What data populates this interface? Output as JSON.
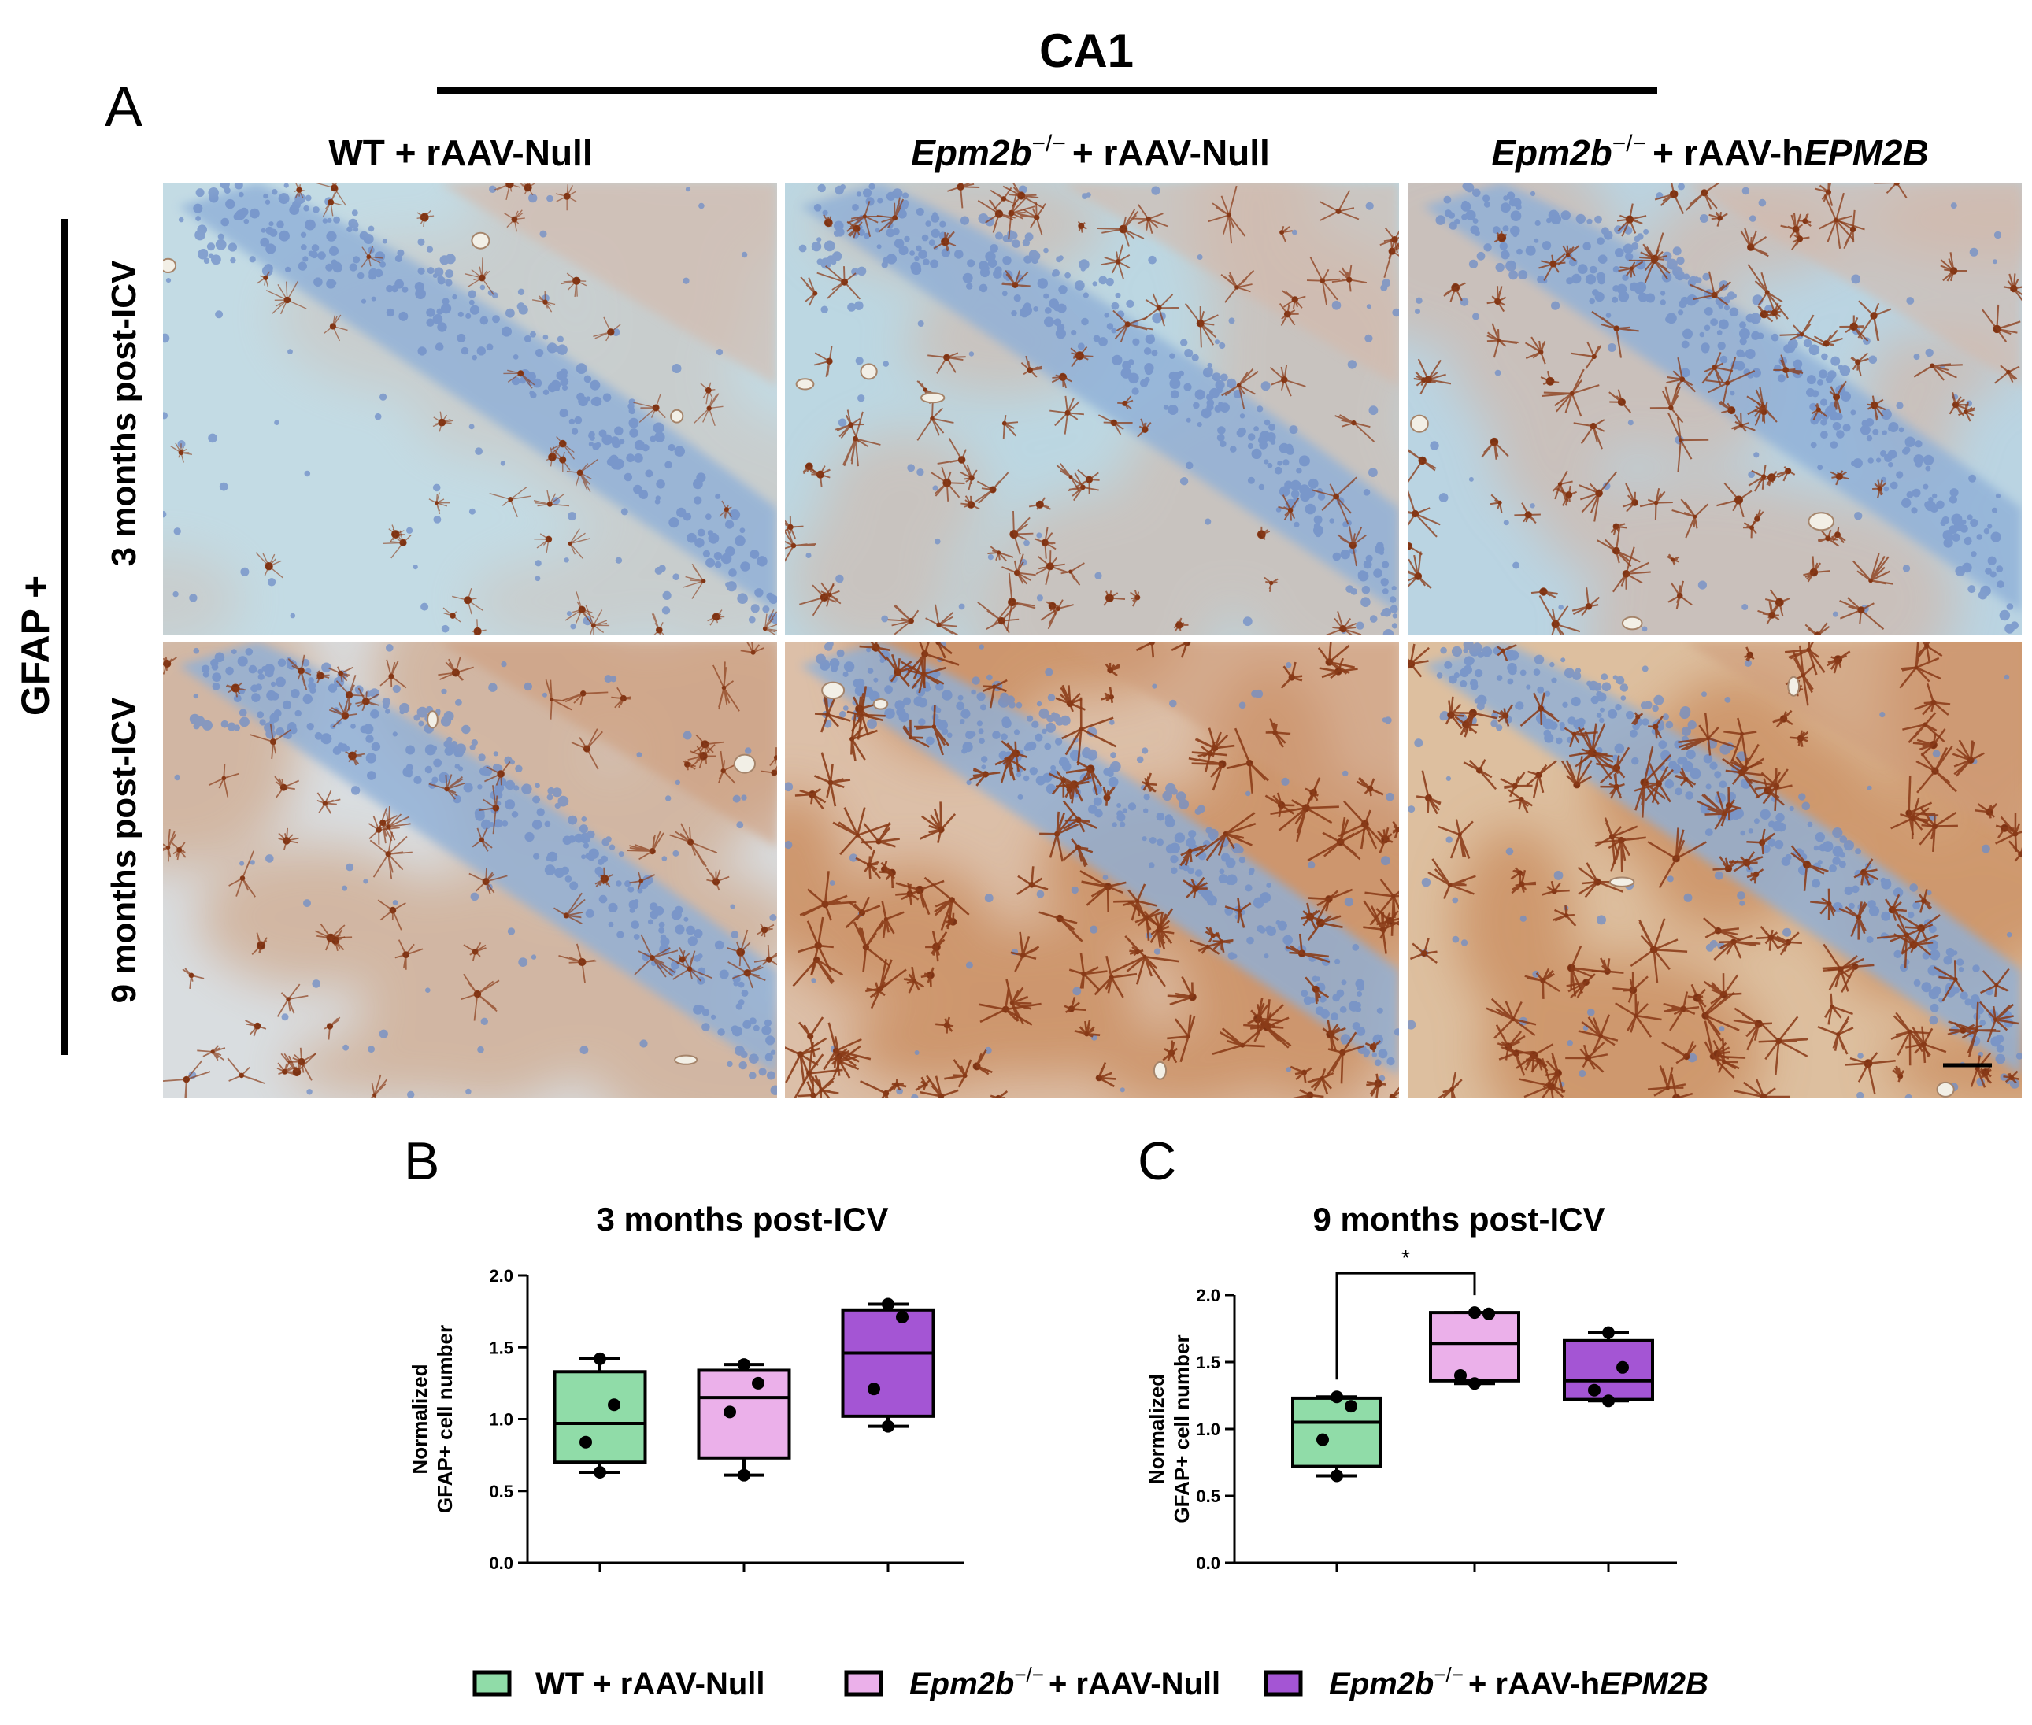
{
  "panel_a": {
    "letter": "A",
    "region": "CA1",
    "row_header": "GFAP +",
    "columns": [
      {
        "part1": "WT + rAAV-Null",
        "sup": "",
        "part2": "",
        "part3": ""
      },
      {
        "part1": "Epm2b",
        "sup": "−/−",
        "part2": "+ rAAV-Null",
        "part3": ""
      },
      {
        "part1": "Epm2b",
        "sup": "−/−",
        "part2": "+ rAAV-h",
        "part3": "EPM2B"
      }
    ],
    "rows": [
      "3 months post-ICV",
      "9 months post-ICV"
    ]
  },
  "colors": {
    "wt_null": "#90dca8",
    "ko_null": "#ebb0ea",
    "ko_hepm2b": "#a455d4",
    "stain_blue": "#a9c9de",
    "stain_brown": "#8a3b18"
  },
  "legend": [
    {
      "part1": "WT + rAAV-Null",
      "sup": "",
      "part2": "",
      "part3": "",
      "color": "#90dca8"
    },
    {
      "part1": "Epm2b",
      "sup": "−/−",
      "part2": "+ rAAV-Null",
      "part3": "",
      "color": "#ebb0ea"
    },
    {
      "part1": "Epm2b",
      "sup": "−/−",
      "part2": "+ rAAV-h",
      "part3": "EPM2B",
      "color": "#a455d4"
    }
  ],
  "chart_data": [
    {
      "panel": "B",
      "type": "box",
      "title": "3 months post-ICV",
      "ylabel_line1": "Normalized",
      "ylabel_line2": "GFAP+ cell number",
      "ylim": [
        0,
        2.0
      ],
      "yticks": [
        "0.0",
        "0.5",
        "1.0",
        "1.5",
        "2.0"
      ],
      "significance": "",
      "groups": [
        {
          "name": "WT + rAAV-Null",
          "min": 0.63,
          "q1": 0.7,
          "median": 0.97,
          "q3": 1.33,
          "max": 1.42,
          "points": [
            0.63,
            0.84,
            1.1,
            1.42
          ]
        },
        {
          "name": "Epm2b-/- + rAAV-Null",
          "min": 0.61,
          "q1": 0.73,
          "median": 1.15,
          "q3": 1.34,
          "max": 1.38,
          "points": [
            0.61,
            1.05,
            1.25,
            1.38
          ]
        },
        {
          "name": "Epm2b-/- + rAAV-hEPM2B",
          "min": 0.95,
          "q1": 1.02,
          "median": 1.46,
          "q3": 1.76,
          "max": 1.8,
          "points": [
            0.95,
            1.21,
            1.71,
            1.8
          ]
        }
      ]
    },
    {
      "panel": "C",
      "type": "box",
      "title": "9 months post-ICV",
      "ylabel_line1": "Normalized",
      "ylabel_line2": "GFAP+ cell number",
      "ylim": [
        0,
        2.0
      ],
      "yticks": [
        "0.0",
        "0.5",
        "1.0",
        "1.5",
        "2.0"
      ],
      "significance": "*",
      "groups": [
        {
          "name": "WT + rAAV-Null",
          "min": 0.65,
          "q1": 0.72,
          "median": 1.05,
          "q3": 1.23,
          "max": 1.24,
          "points": [
            0.65,
            0.92,
            1.17,
            1.24
          ]
        },
        {
          "name": "Epm2b-/- + rAAV-Null",
          "min": 1.34,
          "q1": 1.36,
          "median": 1.64,
          "q3": 1.87,
          "max": 1.87,
          "points": [
            1.34,
            1.4,
            1.86,
            1.87
          ]
        },
        {
          "name": "Epm2b-/- + rAAV-hEPM2B",
          "min": 1.21,
          "q1": 1.22,
          "median": 1.36,
          "q3": 1.66,
          "max": 1.72,
          "points": [
            1.21,
            1.29,
            1.46,
            1.72
          ]
        }
      ]
    }
  ]
}
